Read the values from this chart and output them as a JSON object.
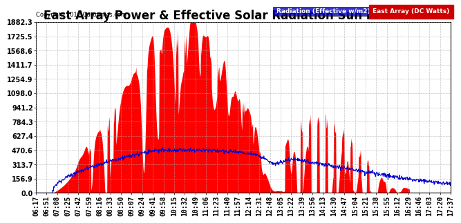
{
  "title": "East Array Power & Effective Solar Radiation Sun Mar 6 17:45",
  "copyright": "Copyright 2016 Cartronics.com",
  "legend_radiation": "Radiation (Effective w/m2)",
  "legend_east": "East Array (DC Watts)",
  "legend_radiation_color": "#0000bb",
  "legend_east_color": "#cc0000",
  "background_color": "#ffffff",
  "plot_bg_color": "#ffffff",
  "grid_color": "#aaaaaa",
  "ymin": 0.0,
  "ymax": 1882.3,
  "yticks": [
    0.0,
    156.9,
    313.7,
    470.6,
    627.4,
    784.3,
    941.2,
    1098.0,
    1254.9,
    1411.7,
    1568.6,
    1725.5,
    1882.3
  ],
  "title_fontsize": 12,
  "tick_fontsize": 7
}
